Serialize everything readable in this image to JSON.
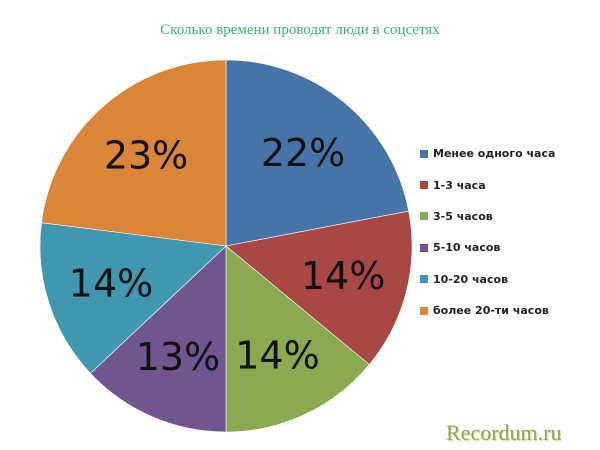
{
  "title": "Сколько времени проводят люди в соцсетях",
  "watermark": "Recordum.ru",
  "chart_data": {
    "type": "pie",
    "title": "Сколько времени проводят люди в соцсетях",
    "categories": [
      "Менее одного часа",
      "1-3 часа",
      "3-5 часов",
      "5-10 часов",
      "10-20 часов",
      "более 20-ти часов"
    ],
    "values": [
      22,
      14,
      14,
      13,
      14,
      23
    ],
    "labels": [
      "22%",
      "14%",
      "14%",
      "13%",
      "14%",
      "23%"
    ],
    "colors": [
      "#4673a8",
      "#a94744",
      "#8ba950",
      "#70558f",
      "#3f98b0",
      "#da8538"
    ],
    "start_angle": "12 o'clock, clockwise",
    "legend_position": "right"
  },
  "legend": [
    {
      "label": "Менее одного часа",
      "color": "#4673a8"
    },
    {
      "label": "1-3 часа",
      "color": "#a94744"
    },
    {
      "label": "3-5 часов",
      "color": "#8ba950"
    },
    {
      "label": "5-10 часов",
      "color": "#70558f"
    },
    {
      "label": "10-20 часов",
      "color": "#3f98b0"
    },
    {
      "label": "более 20-ти часов",
      "color": "#da8538"
    }
  ]
}
